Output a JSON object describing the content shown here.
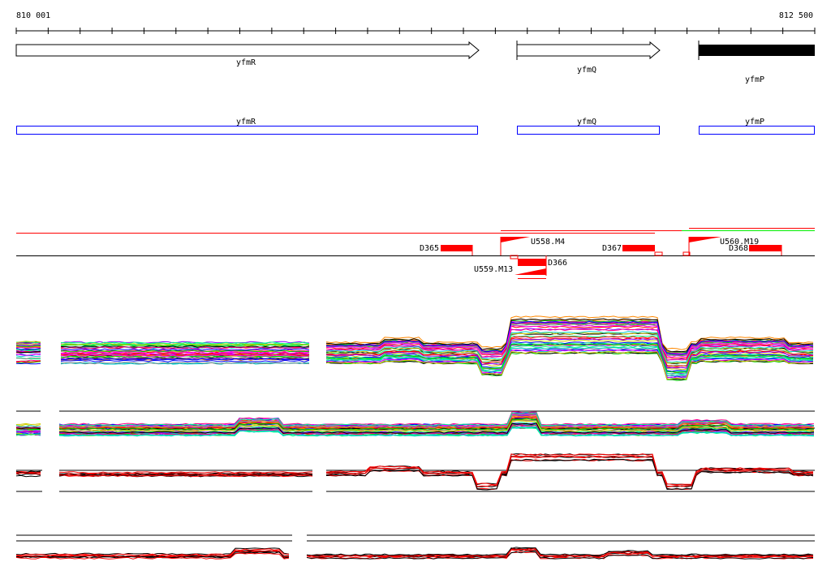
{
  "ruler": {
    "start_label": "810 001",
    "end_label": "812 500",
    "start": 810001,
    "end": 812500,
    "tick_interval": 100
  },
  "genes": [
    {
      "name": "yfmR",
      "strand": "+",
      "start": 810001,
      "end": 811450
    },
    {
      "name": "yfmQ",
      "strand": "+",
      "start": 811570,
      "end": 812020
    },
    {
      "name": "yfmP",
      "strand": "-",
      "start": 812140,
      "end": 812500
    }
  ],
  "gene_boxes": [
    {
      "name": "yfmR",
      "start": 810001,
      "end": 811450
    },
    {
      "name": "yfmQ",
      "start": 811570,
      "end": 812020
    },
    {
      "name": "yfmP",
      "start": 812140,
      "end": 812500
    }
  ],
  "features": [
    {
      "label": "D365",
      "type": "down"
    },
    {
      "label": "U558.M4",
      "type": "up"
    },
    {
      "label": "D367",
      "type": "down"
    },
    {
      "label": "U560.M19",
      "type": "up"
    },
    {
      "label": "D368",
      "type": "down"
    },
    {
      "label": "D366",
      "type": "down"
    },
    {
      "label": "U559.M13",
      "type": "up"
    }
  ],
  "colors": {
    "gene_box": "#0000ff",
    "feature": "#ff0000",
    "green_track": "#00ee00",
    "axis": "#000000"
  }
}
